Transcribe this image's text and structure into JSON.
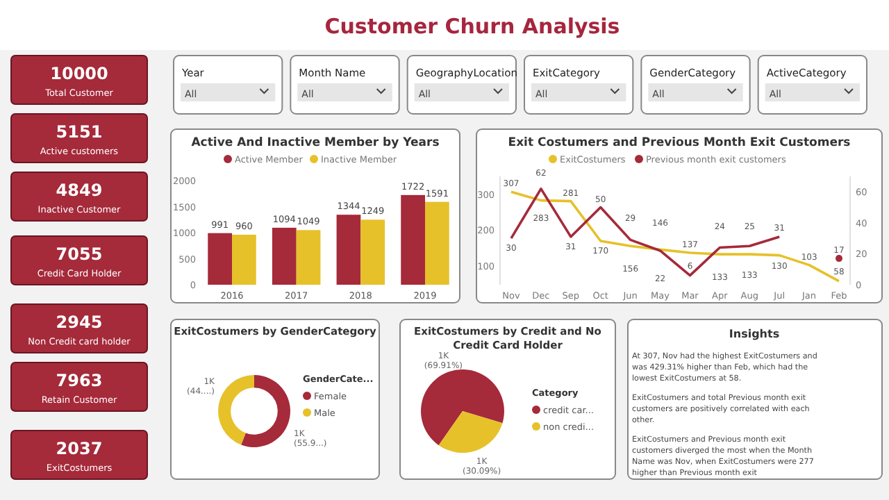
{
  "chart_data": [
    {
      "type": "other",
      "title": "Customer Churn Analysis",
      "categories": [
        "Year",
        "Month Name",
        "GeographyLocation",
        "ExitCategory",
        "GenderCategory",
        "ActiveCategory"
      ],
      "annotations": [
        "All",
        "All",
        "All",
        "All",
        "All",
        "All"
      ]
    },
    {
      "type": "other",
      "categories": [
        "Total Customer",
        "Active customers",
        "Inactive Customer",
        "Credit Card Holder",
        "Non Credit card holder",
        "Retain Customer",
        "ExitCostumers"
      ],
      "values": [
        10000,
        5151,
        4849,
        7055,
        2945,
        7963,
        2037
      ],
      "colors": [
        "#a52a3a",
        "#a52a3a",
        "#a52a3a",
        "#a52a3a",
        "#a52a3a",
        "#a52a3a",
        "#a52a3a"
      ],
      "data_labels": true
    },
    {
      "type": "bar",
      "title": "Active And Inactive Member by Years",
      "categories": [
        "2016",
        "2017",
        "2018",
        "2019"
      ],
      "series": [
        {
          "name": "Active Member",
          "color": "#a52a3a",
          "values": [
            991,
            1094,
            1344,
            1722
          ]
        },
        {
          "name": "Inactive Member",
          "color": "#e6c12a",
          "values": [
            960,
            1049,
            1249,
            1591
          ]
        }
      ],
      "ylim": [
        0,
        2000
      ],
      "yticks": [
        0,
        500,
        1000,
        1500,
        2000
      ],
      "legend": "top",
      "data_labels": true
    },
    {
      "type": "line",
      "title": "Exit Costumers and Previous Month Exit Customers",
      "categories": [
        "Nov",
        "Dec",
        "Sep",
        "Oct",
        "Jun",
        "May",
        "Mar",
        "Apr",
        "Aug",
        "Jul",
        "Jan",
        "Feb"
      ],
      "series": [
        {
          "name": "ExitCostumers",
          "color": "#e6c12a",
          "values": [
            307,
            283,
            281,
            170,
            156,
            146,
            137,
            133,
            133,
            130,
            103,
            58
          ]
        },
        {
          "name": "Previous month exit customers",
          "color": "#a52a3a",
          "axis": "y2",
          "values": [
            30,
            62,
            31,
            50,
            29,
            22,
            6,
            24,
            25,
            31,
            null,
            17
          ]
        }
      ],
      "ylim": [
        48,
        350
      ],
      "yticks": [
        100,
        200,
        300
      ],
      "y2lim": [
        0,
        70
      ],
      "y2ticks": [
        0,
        20,
        40,
        60
      ],
      "legend": "top",
      "data_labels": true
    },
    {
      "type": "donut",
      "title": "ExitCostumers by GenderCategory",
      "legend_title": "GenderCate...",
      "categories": [
        "Female",
        "Male"
      ],
      "values": [
        55.9,
        44.1
      ],
      "colors": [
        "#a52a3a",
        "#e6c12a"
      ],
      "value_labels": [
        "1K (55.9...)",
        "1K (44....)"
      ],
      "legend": "right"
    },
    {
      "type": "pie",
      "title": "ExitCostumers by Credit and No Credit Card Holder",
      "legend_title": "Category",
      "categories": [
        "credit car...",
        "non credi..."
      ],
      "values": [
        69.91,
        30.09
      ],
      "colors": [
        "#a52a3a",
        "#e6c12a"
      ],
      "value_labels": [
        "1K (69.91%)",
        "1K (30.09%)"
      ],
      "legend": "right"
    },
    {
      "type": "other",
      "title": "Insights",
      "annotations": [
        "At 307, Nov had the highest ExitCostumers and was 429.31% higher than Feb, which had the lowest ExitCostumers at 58.",
        "ExitCostumers and total Previous month exit customers are positively correlated with each other.",
        "ExitCostumers and Previous month exit customers diverged the most when the Month Name was Nov, when ExitCostumers were 277 higher than Previous month exit"
      ]
    }
  ]
}
